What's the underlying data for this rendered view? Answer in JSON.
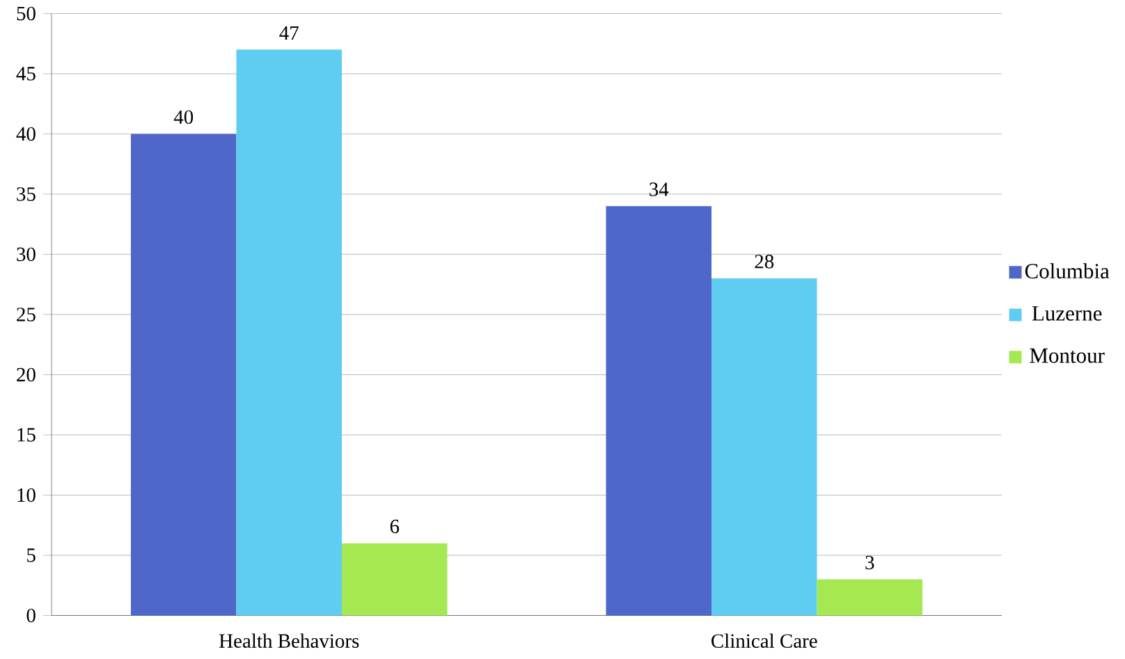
{
  "chart_data": {
    "type": "bar",
    "categories": [
      "Health Behaviors",
      "Clinical Care"
    ],
    "series": [
      {
        "name": "Columbia",
        "color": "#4f67c8",
        "values": [
          40,
          34
        ]
      },
      {
        "name": "Luzerne",
        "color": "#5fccf2",
        "values": [
          47,
          28
        ]
      },
      {
        "name": "Montour",
        "color": "#a6e851",
        "values": [
          6,
          3
        ]
      }
    ],
    "ylim": [
      0,
      50
    ],
    "yticks": [
      0,
      5,
      10,
      15,
      20,
      25,
      30,
      35,
      40,
      45,
      50
    ],
    "grid": "y",
    "legend": "right",
    "data_labels": true
  }
}
